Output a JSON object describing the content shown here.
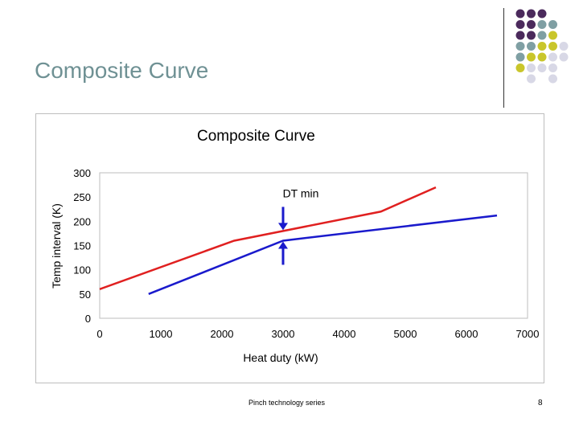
{
  "slide": {
    "title": "Composite Curve",
    "footer": "Pinch technology series",
    "page_number": "8"
  },
  "decor": {
    "dot_colors": {
      "purple": "#4b2a5c",
      "teal": "#7f9fa3",
      "olive": "#c9c62b",
      "lavender": "#d8d8e6"
    },
    "dot_grid": [
      [
        "purple",
        "purple",
        "purple",
        null,
        null
      ],
      [
        "purple",
        "purple",
        "teal",
        "teal",
        null
      ],
      [
        "purple",
        "purple",
        "teal",
        "olive",
        null
      ],
      [
        "teal",
        "teal",
        "olive",
        "olive",
        "lavender"
      ],
      [
        "teal",
        "olive",
        "olive",
        "lavender",
        "lavender"
      ],
      [
        "olive",
        "lavender",
        "lavender",
        "lavender",
        null
      ],
      [
        null,
        "lavender",
        null,
        "lavender",
        null
      ]
    ]
  },
  "chart_data": {
    "type": "line",
    "title": "Composite Curve",
    "xlabel": "Heat duty (kW)",
    "ylabel": "Temp interval (K)",
    "xlim": [
      0,
      7000
    ],
    "ylim": [
      0,
      300
    ],
    "xticks": [
      0,
      1000,
      2000,
      3000,
      4000,
      5000,
      6000,
      7000
    ],
    "yticks": [
      0,
      50,
      100,
      150,
      200,
      250,
      300
    ],
    "grid": false,
    "series": [
      {
        "color": "#e02020",
        "points": [
          [
            0,
            60
          ],
          [
            2200,
            160
          ],
          [
            4600,
            220
          ],
          [
            5500,
            270
          ]
        ]
      },
      {
        "color": "#1a1acc",
        "points": [
          [
            800,
            50
          ],
          [
            3000,
            160
          ],
          [
            6500,
            212
          ]
        ]
      }
    ],
    "annotation": {
      "text": "DT min",
      "at_x": 3000,
      "upper_y": 180,
      "lower_y": 160,
      "label_y": 258,
      "color": "#1a1acc"
    }
  }
}
